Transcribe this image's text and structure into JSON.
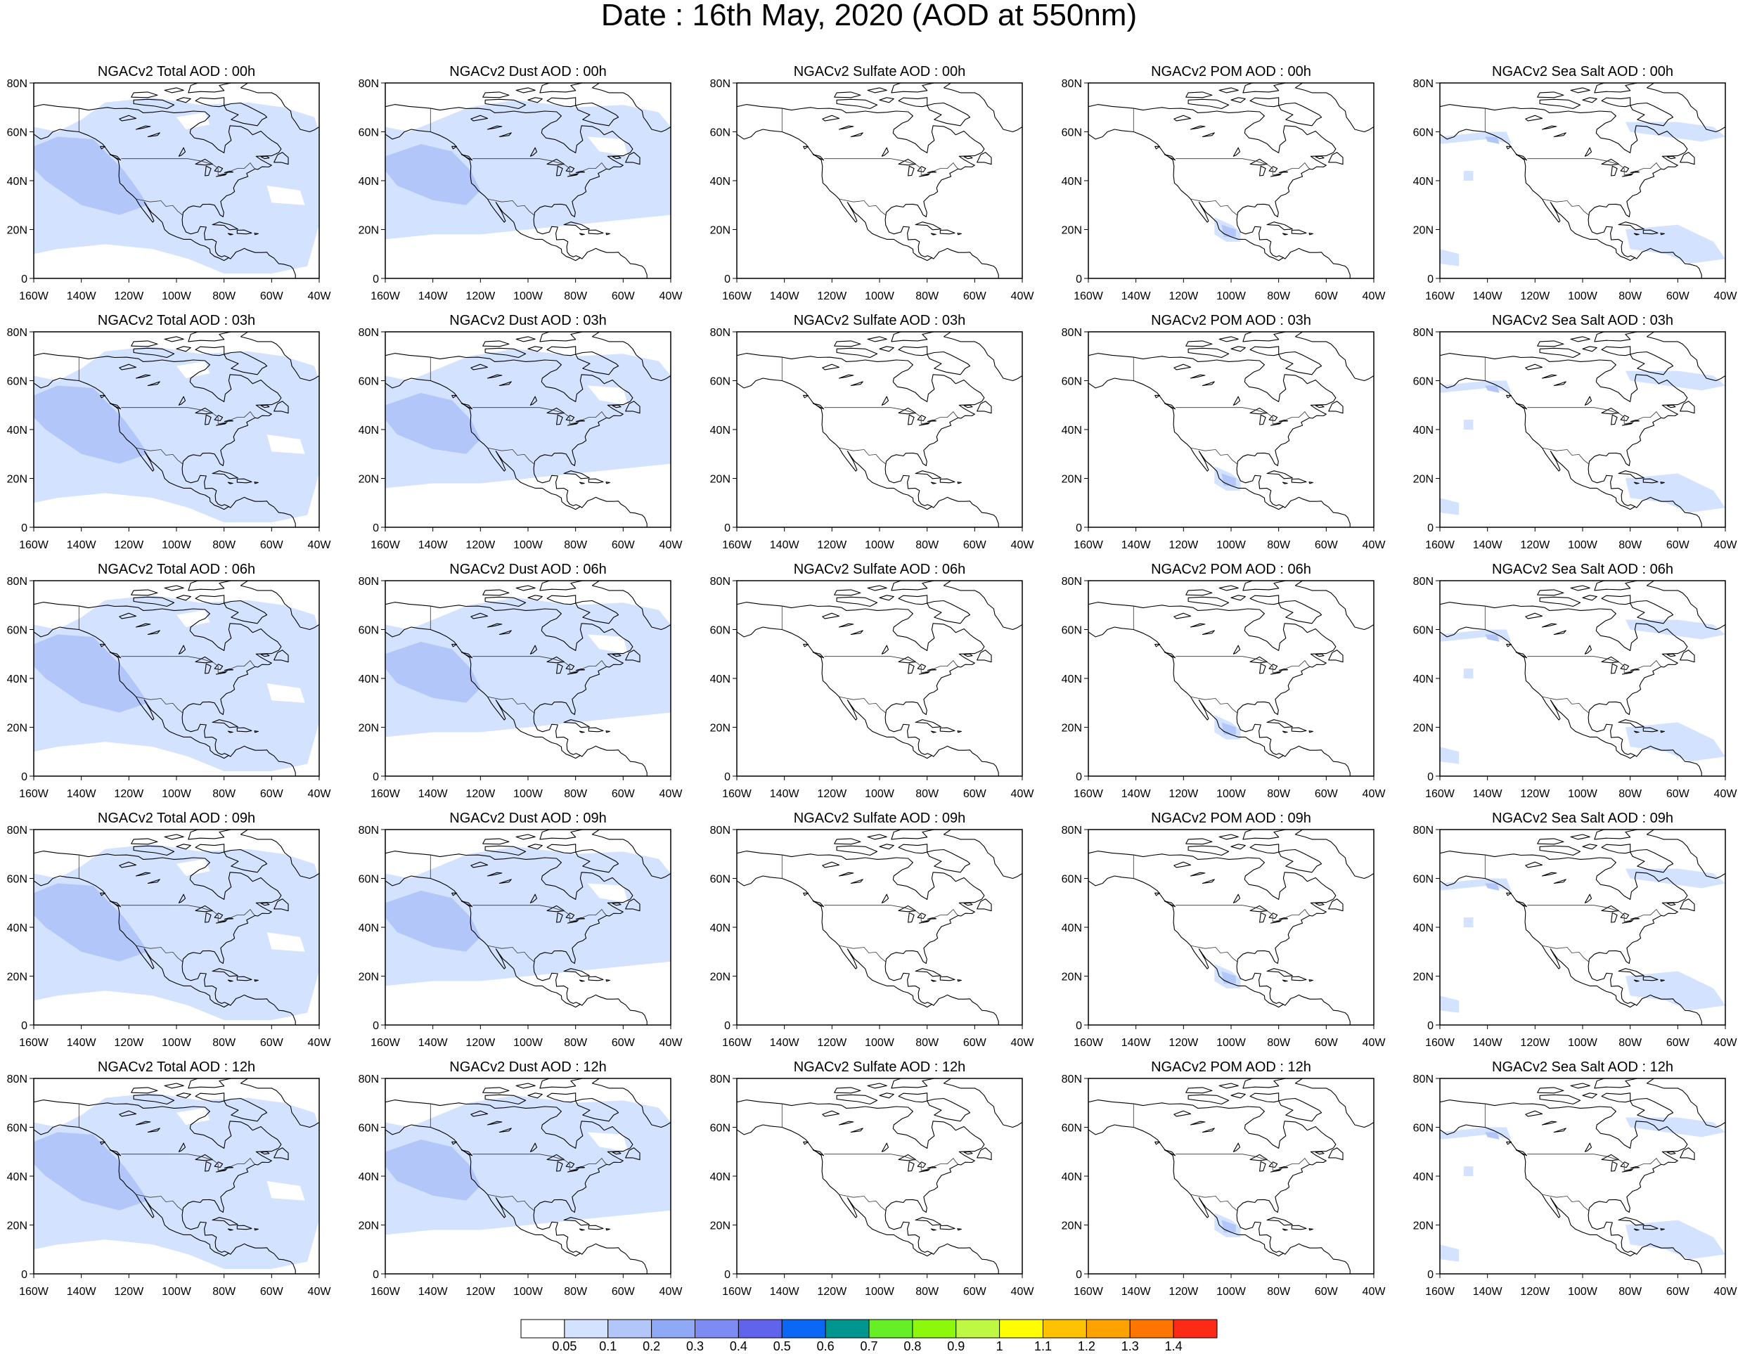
{
  "title": "Date : 16th May, 2020 (AOD at 550nm)",
  "colors": {
    "background": "#ffffff",
    "frame": "#000000",
    "land_outline": "#000000",
    "light_blue": "#d3e2ff",
    "mid_blue": "#b3c6fa"
  },
  "axes": {
    "x_ticks": [
      "160W",
      "140W",
      "120W",
      "100W",
      "80W",
      "60W",
      "40W"
    ],
    "y_ticks": [
      "80N",
      "60N",
      "40N",
      "20N",
      "0"
    ],
    "lon_range": [
      -160,
      -40
    ],
    "lat_range": [
      0,
      80
    ]
  },
  "panels": [
    [
      {
        "title": "NGACv2 Total AOD : 00h",
        "species": "total"
      },
      {
        "title": "NGACv2 Dust AOD : 00h",
        "species": "dust"
      },
      {
        "title": "NGACv2 Sulfate AOD : 00h",
        "species": "sulfate"
      },
      {
        "title": "NGACv2 POM AOD : 00h",
        "species": "pom"
      },
      {
        "title": "NGACv2 Sea Salt AOD : 00h",
        "species": "seasalt"
      }
    ],
    [
      {
        "title": "NGACv2 Total AOD : 03h",
        "species": "total"
      },
      {
        "title": "NGACv2 Dust AOD : 03h",
        "species": "dust"
      },
      {
        "title": "NGACv2 Sulfate AOD : 03h",
        "species": "sulfate"
      },
      {
        "title": "NGACv2 POM AOD : 03h",
        "species": "pom"
      },
      {
        "title": "NGACv2 Sea Salt AOD : 03h",
        "species": "seasalt"
      }
    ],
    [
      {
        "title": "NGACv2 Total AOD : 06h",
        "species": "total"
      },
      {
        "title": "NGACv2 Dust AOD : 06h",
        "species": "dust"
      },
      {
        "title": "NGACv2 Sulfate AOD : 06h",
        "species": "sulfate"
      },
      {
        "title": "NGACv2 POM AOD : 06h",
        "species": "pom"
      },
      {
        "title": "NGACv2 Sea Salt AOD : 06h",
        "species": "seasalt"
      }
    ],
    [
      {
        "title": "NGACv2 Total AOD : 09h",
        "species": "total"
      },
      {
        "title": "NGACv2 Dust AOD : 09h",
        "species": "dust"
      },
      {
        "title": "NGACv2 Sulfate AOD : 09h",
        "species": "sulfate"
      },
      {
        "title": "NGACv2 POM AOD : 09h",
        "species": "pom"
      },
      {
        "title": "NGACv2 Sea Salt  AOD : 09h",
        "species": "seasalt"
      }
    ],
    [
      {
        "title": "NGACv2 Total AOD  : 12h",
        "species": "total"
      },
      {
        "title": "NGACv2 Dust AOD : 12h",
        "species": "dust"
      },
      {
        "title": "NGACv2 Sulfate AOD : 12h",
        "species": "sulfate"
      },
      {
        "title": "NGACv2 POM  AOD : 12h",
        "species": "pom"
      },
      {
        "title": "NGACv2 Sea Salt  AOD : 12h",
        "species": "seasalt"
      }
    ]
  ],
  "colorbar": {
    "colors": [
      "#ffffff",
      "#d3e2ff",
      "#b3c6fa",
      "#90a9f7",
      "#7d8cf3",
      "#6063eb",
      "#0b68f5",
      "#009690",
      "#66ee26",
      "#8ef80c",
      "#bff843",
      "#fefe01",
      "#fec200",
      "#fea200",
      "#fe7600",
      "#fe2a16"
    ],
    "labels": [
      "0.05",
      "0.1",
      "0.2",
      "0.3",
      "0.4",
      "0.5",
      "0.6",
      "0.7",
      "0.8",
      "0.9",
      "1",
      "1.1",
      "1.2",
      "1.3",
      "1.4"
    ]
  }
}
